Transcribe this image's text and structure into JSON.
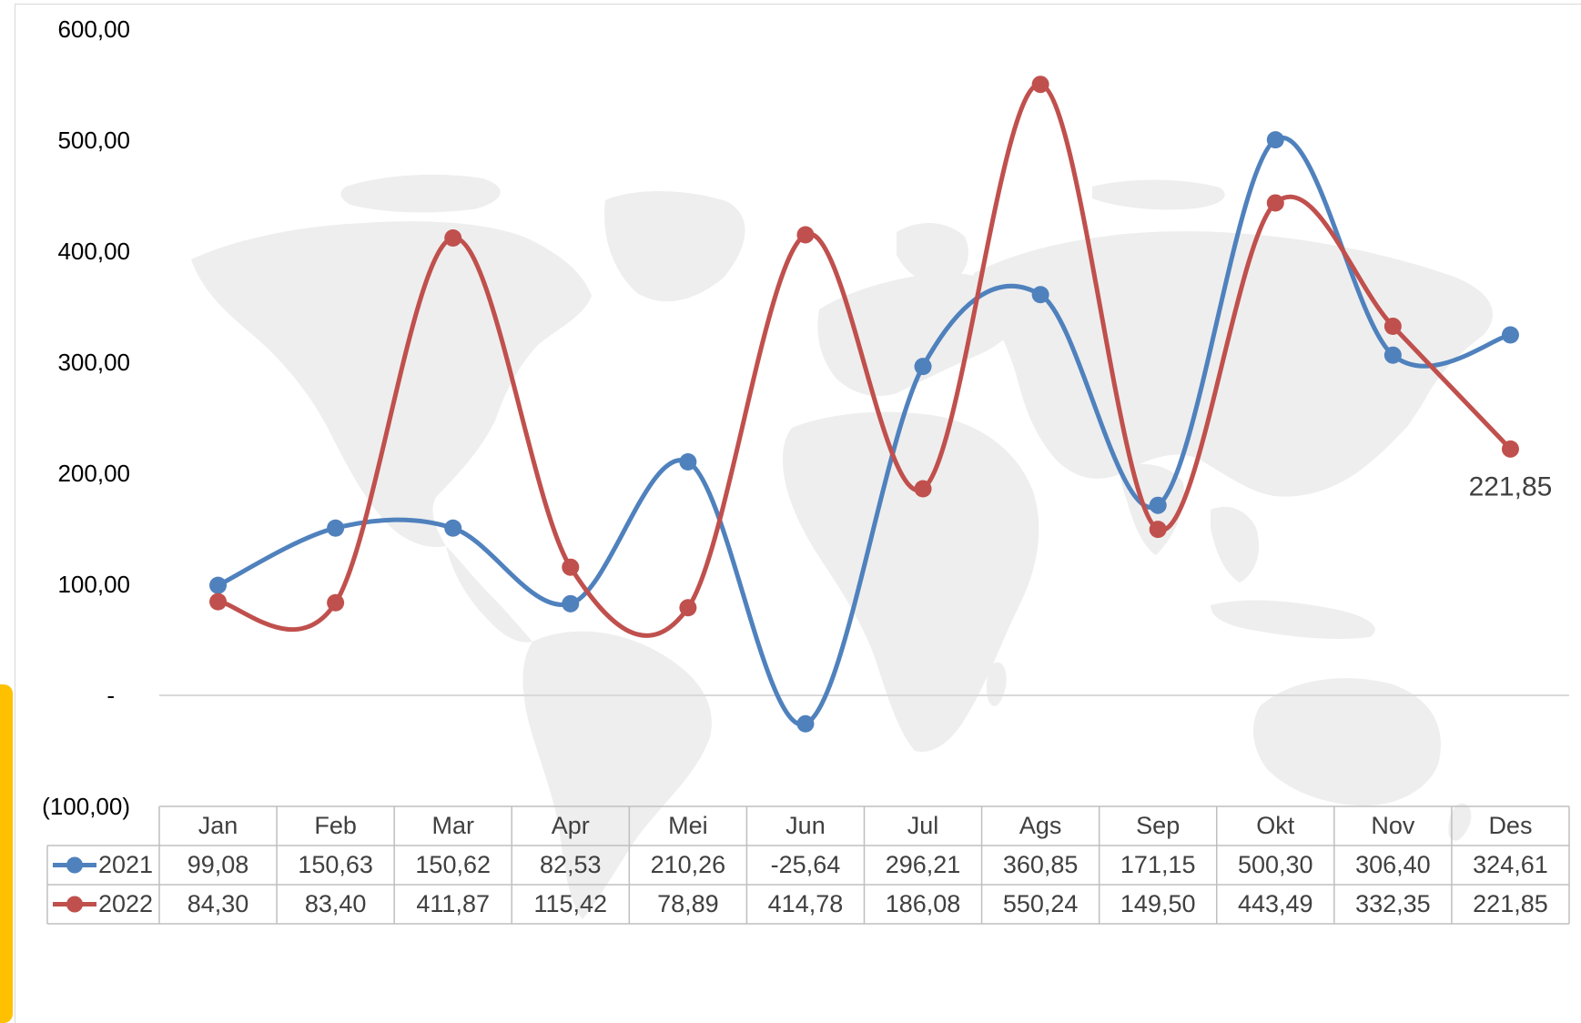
{
  "chart_data": {
    "type": "line",
    "categories": [
      "Jan",
      "Feb",
      "Mar",
      "Apr",
      "Mei",
      "Jun",
      "Jul",
      "Ags",
      "Sep",
      "Okt",
      "Nov",
      "Des"
    ],
    "y_tick_labels": [
      "(100,00)",
      "-",
      "100,00",
      "200,00",
      "300,00",
      "400,00",
      "500,00",
      "600,00"
    ],
    "ylim": [
      -100,
      600
    ],
    "y_ticks": [
      -100,
      0,
      100,
      200,
      300,
      400,
      500,
      600
    ],
    "smooth": true,
    "gridline_at_zero": true,
    "series": [
      {
        "name": "2021",
        "color": "#4F81BD",
        "values": [
          99.08,
          150.63,
          150.62,
          82.53,
          210.26,
          -25.64,
          296.21,
          360.85,
          171.15,
          500.3,
          306.4,
          324.61
        ],
        "labels": [
          "99,08",
          "150,63",
          "150,62",
          "82,53",
          "210,26",
          "-25,64",
          "296,21",
          "360,85",
          "171,15",
          "500,30",
          "306,40",
          "324,61"
        ]
      },
      {
        "name": "2022",
        "color": "#C0504D",
        "values": [
          84.3,
          83.4,
          411.87,
          115.42,
          78.89,
          414.78,
          186.08,
          550.24,
          149.5,
          443.49,
          332.35,
          221.85
        ],
        "labels": [
          "84,30",
          "83,40",
          "411,87",
          "115,42",
          "78,89",
          "414,78",
          "186,08",
          "550,24",
          "149,50",
          "443,49",
          "332,35",
          "221,85"
        ]
      }
    ],
    "data_label": {
      "series": 1,
      "index": 11,
      "text": "221,85"
    },
    "legend": "data-table-rows",
    "background": "world-map-silhouette"
  }
}
